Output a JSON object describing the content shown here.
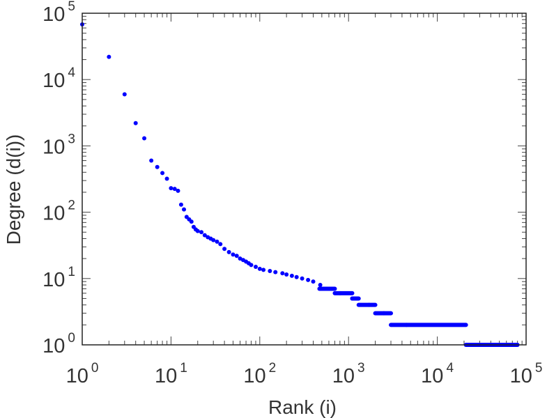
{
  "chart_data": {
    "type": "scatter",
    "title": "",
    "xlabel": "Rank (i)",
    "ylabel": "Degree (d(i))",
    "xscale": "log",
    "yscale": "log",
    "xlim": [
      1,
      100000
    ],
    "ylim": [
      1,
      100000
    ],
    "grid": false,
    "marker_color": "#0000ff",
    "x_ticks": [
      {
        "base": "10",
        "exp": "0"
      },
      {
        "base": "10",
        "exp": "1"
      },
      {
        "base": "10",
        "exp": "2"
      },
      {
        "base": "10",
        "exp": "3"
      },
      {
        "base": "10",
        "exp": "4"
      },
      {
        "base": "10",
        "exp": "5"
      }
    ],
    "y_ticks": [
      {
        "base": "10",
        "exp": "0"
      },
      {
        "base": "10",
        "exp": "1"
      },
      {
        "base": "10",
        "exp": "2"
      },
      {
        "base": "10",
        "exp": "3"
      },
      {
        "base": "10",
        "exp": "4"
      },
      {
        "base": "10",
        "exp": "5"
      }
    ],
    "points": [
      [
        1,
        68000
      ],
      [
        2,
        22000
      ],
      [
        3,
        6000
      ],
      [
        4,
        2200
      ],
      [
        5,
        1300
      ],
      [
        6,
        600
      ],
      [
        7,
        480
      ],
      [
        8,
        390
      ],
      [
        9,
        320
      ],
      [
        10,
        230
      ],
      [
        11,
        225
      ],
      [
        12,
        210
      ],
      [
        13,
        130
      ],
      [
        14,
        110
      ],
      [
        15,
        85
      ],
      [
        16,
        78
      ],
      [
        17,
        72
      ],
      [
        18,
        60
      ],
      [
        19,
        55
      ],
      [
        20,
        52
      ],
      [
        22,
        50
      ],
      [
        24,
        45
      ],
      [
        26,
        42
      ],
      [
        28,
        40
      ],
      [
        30,
        38
      ],
      [
        33,
        36
      ],
      [
        36,
        33
      ],
      [
        40,
        28
      ],
      [
        45,
        25
      ],
      [
        50,
        23
      ],
      [
        55,
        22
      ],
      [
        60,
        20
      ],
      [
        65,
        19
      ],
      [
        70,
        18
      ],
      [
        75,
        17
      ],
      [
        80,
        16
      ],
      [
        90,
        15
      ],
      [
        100,
        14
      ],
      [
        110,
        13.5
      ],
      [
        130,
        13
      ],
      [
        150,
        12.5
      ],
      [
        180,
        12
      ],
      [
        200,
        11.5
      ],
      [
        230,
        11
      ],
      [
        260,
        10.5
      ],
      [
        300,
        10
      ],
      [
        350,
        9.5
      ],
      [
        400,
        9
      ],
      [
        480,
        8
      ],
      [
        600,
        7
      ],
      [
        800,
        6
      ],
      [
        1100,
        5
      ],
      [
        1700,
        4
      ],
      [
        2500,
        3
      ],
      [
        4500,
        2
      ],
      [
        22000,
        1
      ]
    ],
    "plateaus": [
      {
        "y": 7,
        "x_start": 470,
        "x_end": 700
      },
      {
        "y": 6,
        "x_start": 700,
        "x_end": 1100
      },
      {
        "y": 5,
        "x_start": 1100,
        "x_end": 1300
      },
      {
        "y": 4,
        "x_start": 1300,
        "x_end": 2000
      },
      {
        "y": 3,
        "x_start": 2000,
        "x_end": 3000
      },
      {
        "y": 2,
        "x_start": 3000,
        "x_end": 21000
      },
      {
        "y": 1,
        "x_start": 21000,
        "x_end": 80000
      }
    ]
  }
}
